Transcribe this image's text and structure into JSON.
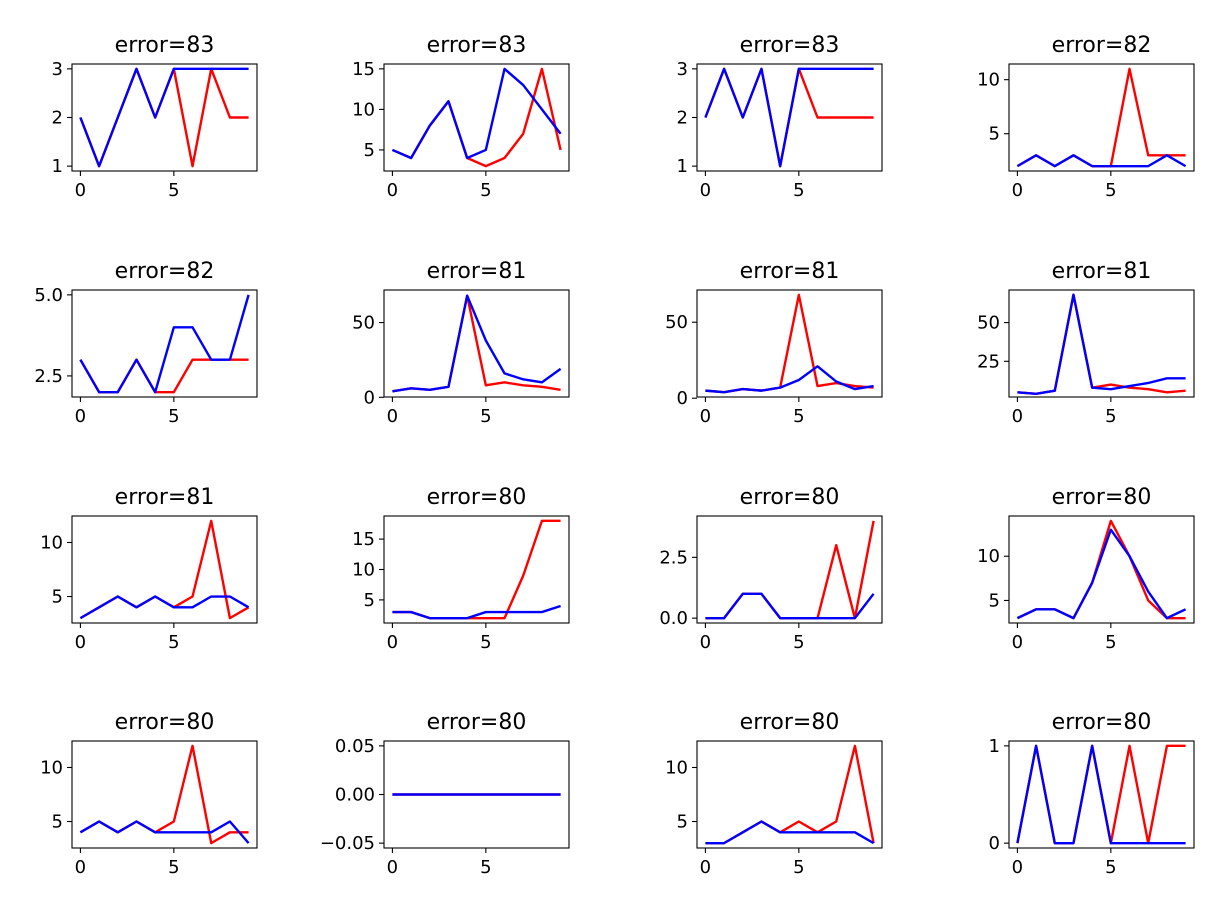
{
  "colors": {
    "red_series": "#ff0000",
    "blue_series": "#0000ff",
    "axes": "#000000",
    "background": "#ffffff"
  },
  "chart_data": [
    {
      "type": "line",
      "title": "error=83",
      "xlabel": "",
      "ylabel": "",
      "x": [
        0,
        1,
        2,
        3,
        4,
        5,
        6,
        7,
        8,
        9
      ],
      "xticks": [
        0,
        5
      ],
      "yticks": [
        1,
        2,
        3
      ],
      "ytick_labels": [
        "1",
        "2",
        "3"
      ],
      "ylim": [
        0.9,
        3.1
      ],
      "grid": false,
      "series": [
        {
          "color": "red",
          "values": [
            2,
            1,
            2,
            3,
            2,
            3,
            1,
            3,
            2,
            2
          ]
        },
        {
          "color": "blue",
          "values": [
            2,
            1,
            2,
            3,
            2,
            3,
            3,
            3,
            3,
            3
          ]
        }
      ]
    },
    {
      "type": "line",
      "title": "error=83",
      "xlabel": "",
      "ylabel": "",
      "x": [
        0,
        1,
        2,
        3,
        4,
        5,
        6,
        7,
        8,
        9
      ],
      "xticks": [
        0,
        5
      ],
      "yticks": [
        5,
        10,
        15
      ],
      "ytick_labels": [
        "5",
        "10",
        "15"
      ],
      "ylim": [
        2.4,
        15.6
      ],
      "grid": false,
      "series": [
        {
          "color": "red",
          "values": [
            5,
            4,
            8,
            11,
            4,
            3,
            4,
            7,
            15,
            5
          ]
        },
        {
          "color": "blue",
          "values": [
            5,
            4,
            8,
            11,
            4,
            5,
            15,
            13,
            10,
            7
          ]
        }
      ]
    },
    {
      "type": "line",
      "title": "error=83",
      "xlabel": "",
      "ylabel": "",
      "x": [
        0,
        1,
        2,
        3,
        4,
        5,
        6,
        7,
        8,
        9
      ],
      "xticks": [
        0,
        5
      ],
      "yticks": [
        1,
        2,
        3
      ],
      "ytick_labels": [
        "1",
        "2",
        "3"
      ],
      "ylim": [
        0.9,
        3.1
      ],
      "grid": false,
      "series": [
        {
          "color": "red",
          "values": [
            2,
            3,
            2,
            3,
            1,
            3,
            2,
            2,
            2,
            2
          ]
        },
        {
          "color": "blue",
          "values": [
            2,
            3,
            2,
            3,
            1,
            3,
            3,
            3,
            3,
            3
          ]
        }
      ]
    },
    {
      "type": "line",
      "title": "error=82",
      "xlabel": "",
      "ylabel": "",
      "x": [
        0,
        1,
        2,
        3,
        4,
        5,
        6,
        7,
        8,
        9
      ],
      "xticks": [
        0,
        5
      ],
      "yticks": [
        5,
        10
      ],
      "ytick_labels": [
        "5",
        "10"
      ],
      "ylim": [
        1.55,
        11.45
      ],
      "grid": false,
      "series": [
        {
          "color": "red",
          "values": [
            2,
            3,
            2,
            3,
            2,
            2,
            11,
            3,
            3,
            3
          ]
        },
        {
          "color": "blue",
          "values": [
            2,
            3,
            2,
            3,
            2,
            2,
            2,
            2,
            3,
            2
          ]
        }
      ]
    },
    {
      "type": "line",
      "title": "error=82",
      "xlabel": "",
      "ylabel": "",
      "x": [
        0,
        1,
        2,
        3,
        4,
        5,
        6,
        7,
        8,
        9
      ],
      "xticks": [
        0,
        5
      ],
      "yticks": [
        2.5,
        5.0
      ],
      "ytick_labels": [
        "2.5",
        "5.0"
      ],
      "ylim": [
        1.85,
        5.15
      ],
      "grid": false,
      "series": [
        {
          "color": "red",
          "values": [
            3,
            2,
            2,
            3,
            2,
            2,
            3,
            3,
            3,
            3
          ]
        },
        {
          "color": "blue",
          "values": [
            3,
            2,
            2,
            3,
            2,
            4,
            4,
            3,
            3,
            5
          ]
        }
      ]
    },
    {
      "type": "line",
      "title": "error=81",
      "xlabel": "",
      "ylabel": "",
      "x": [
        0,
        1,
        2,
        3,
        4,
        5,
        6,
        7,
        8,
        9
      ],
      "xticks": [
        0,
        5
      ],
      "yticks": [
        0,
        50
      ],
      "ytick_labels": [
        "0",
        "50"
      ],
      "ylim": [
        0.2,
        71.8
      ],
      "grid": false,
      "series": [
        {
          "color": "red",
          "values": [
            4,
            6,
            5,
            7,
            68,
            8,
            10,
            8,
            7,
            5
          ]
        },
        {
          "color": "blue",
          "values": [
            4,
            6,
            5,
            7,
            68,
            38,
            16,
            12,
            10,
            19
          ]
        }
      ]
    },
    {
      "type": "line",
      "title": "error=81",
      "xlabel": "",
      "ylabel": "",
      "x": [
        0,
        1,
        2,
        3,
        4,
        5,
        6,
        7,
        8,
        9
      ],
      "xticks": [
        0,
        5
      ],
      "yticks": [
        0,
        50
      ],
      "ytick_labels": [
        "0",
        "50"
      ],
      "ylim": [
        0.8,
        71.2
      ],
      "grid": false,
      "series": [
        {
          "color": "red",
          "values": [
            5,
            4,
            6,
            5,
            7,
            68,
            8,
            10,
            8,
            7
          ]
        },
        {
          "color": "blue",
          "values": [
            5,
            4,
            6,
            5,
            7,
            12,
            21,
            11,
            6,
            8
          ]
        }
      ]
    },
    {
      "type": "line",
      "title": "error=81",
      "xlabel": "",
      "ylabel": "",
      "x": [
        0,
        1,
        2,
        3,
        4,
        5,
        6,
        7,
        8,
        9
      ],
      "xticks": [
        0,
        5
      ],
      "yticks": [
        25,
        50
      ],
      "ytick_labels": [
        "25",
        "50"
      ],
      "ylim": [
        1.95,
        71.05
      ],
      "grid": false,
      "series": [
        {
          "color": "red",
          "values": [
            5,
            4,
            6,
            68,
            8,
            10,
            8,
            7,
            5,
            6
          ]
        },
        {
          "color": "blue",
          "values": [
            5,
            4,
            6,
            68,
            8,
            7,
            9,
            11,
            14,
            14
          ]
        }
      ]
    },
    {
      "type": "line",
      "title": "error=81",
      "xlabel": "",
      "ylabel": "",
      "x": [
        0,
        1,
        2,
        3,
        4,
        5,
        6,
        7,
        8,
        9
      ],
      "xticks": [
        0,
        5
      ],
      "yticks": [
        5,
        10
      ],
      "ytick_labels": [
        "5",
        "10"
      ],
      "ylim": [
        2.55,
        12.45
      ],
      "grid": false,
      "series": [
        {
          "color": "red",
          "values": [
            3,
            4,
            5,
            4,
            5,
            4,
            5,
            12,
            3,
            4
          ]
        },
        {
          "color": "blue",
          "values": [
            3,
            4,
            5,
            4,
            5,
            4,
            4,
            5,
            5,
            4
          ]
        }
      ]
    },
    {
      "type": "line",
      "title": "error=80",
      "xlabel": "",
      "ylabel": "",
      "x": [
        0,
        1,
        2,
        3,
        4,
        5,
        6,
        7,
        8,
        9
      ],
      "xticks": [
        0,
        5
      ],
      "yticks": [
        5,
        10,
        15
      ],
      "ytick_labels": [
        "5",
        "10",
        "15"
      ],
      "ylim": [
        1.2,
        18.8
      ],
      "grid": false,
      "series": [
        {
          "color": "red",
          "values": [
            3,
            3,
            2,
            2,
            2,
            2,
            2,
            9,
            18,
            18
          ]
        },
        {
          "color": "blue",
          "values": [
            3,
            3,
            2,
            2,
            2,
            3,
            3,
            3,
            3,
            4
          ]
        }
      ]
    },
    {
      "type": "line",
      "title": "error=80",
      "xlabel": "",
      "ylabel": "",
      "x": [
        0,
        1,
        2,
        3,
        4,
        5,
        6,
        7,
        8,
        9
      ],
      "xticks": [
        0,
        5
      ],
      "yticks": [
        0.0,
        2.5
      ],
      "ytick_labels": [
        "0.0",
        "2.5"
      ],
      "ylim": [
        -0.2,
        4.2
      ],
      "grid": false,
      "series": [
        {
          "color": "red",
          "values": [
            0,
            0,
            1,
            1,
            0,
            0,
            0,
            3,
            0,
            4
          ]
        },
        {
          "color": "blue",
          "values": [
            0,
            0,
            1,
            1,
            0,
            0,
            0,
            0,
            0,
            1
          ]
        }
      ]
    },
    {
      "type": "line",
      "title": "error=80",
      "xlabel": "",
      "ylabel": "",
      "x": [
        0,
        1,
        2,
        3,
        4,
        5,
        6,
        7,
        8,
        9
      ],
      "xticks": [
        0,
        5
      ],
      "yticks": [
        5,
        10
      ],
      "ytick_labels": [
        "5",
        "10"
      ],
      "ylim": [
        2.45,
        14.55
      ],
      "grid": false,
      "series": [
        {
          "color": "red",
          "values": [
            3,
            4,
            4,
            3,
            7,
            14,
            10,
            5,
            3,
            3
          ]
        },
        {
          "color": "blue",
          "values": [
            3,
            4,
            4,
            3,
            7,
            13,
            10,
            6,
            3,
            4
          ]
        }
      ]
    },
    {
      "type": "line",
      "title": "error=80",
      "xlabel": "",
      "ylabel": "",
      "x": [
        0,
        1,
        2,
        3,
        4,
        5,
        6,
        7,
        8,
        9
      ],
      "xticks": [
        0,
        5
      ],
      "yticks": [
        5,
        10
      ],
      "ytick_labels": [
        "5",
        "10"
      ],
      "ylim": [
        2.55,
        12.45
      ],
      "grid": false,
      "series": [
        {
          "color": "red",
          "values": [
            4,
            5,
            4,
            5,
            4,
            5,
            12,
            3,
            4,
            4
          ]
        },
        {
          "color": "blue",
          "values": [
            4,
            5,
            4,
            5,
            4,
            4,
            4,
            4,
            5,
            3
          ]
        }
      ]
    },
    {
      "type": "line",
      "title": "error=80",
      "xlabel": "",
      "ylabel": "",
      "x": [
        0,
        1,
        2,
        3,
        4,
        5,
        6,
        7,
        8,
        9
      ],
      "xticks": [
        0,
        5
      ],
      "yticks": [
        -0.05,
        0.0,
        0.05
      ],
      "ytick_labels": [
        "−0.05",
        "0.00",
        "0.05"
      ],
      "ylim": [
        -0.055,
        0.055
      ],
      "grid": false,
      "series": [
        {
          "color": "red",
          "values": [
            0,
            0,
            0,
            0,
            0,
            0,
            0,
            0,
            0,
            0
          ]
        },
        {
          "color": "blue",
          "values": [
            0,
            0,
            0,
            0,
            0,
            0,
            0,
            0,
            0,
            0
          ]
        }
      ]
    },
    {
      "type": "line",
      "title": "error=80",
      "xlabel": "",
      "ylabel": "",
      "x": [
        0,
        1,
        2,
        3,
        4,
        5,
        6,
        7,
        8,
        9
      ],
      "xticks": [
        0,
        5
      ],
      "yticks": [
        5,
        10
      ],
      "ytick_labels": [
        "5",
        "10"
      ],
      "ylim": [
        2.55,
        12.45
      ],
      "grid": false,
      "series": [
        {
          "color": "red",
          "values": [
            3,
            3,
            4,
            5,
            4,
            5,
            4,
            5,
            12,
            3
          ]
        },
        {
          "color": "blue",
          "values": [
            3,
            3,
            4,
            5,
            4,
            4,
            4,
            4,
            4,
            3
          ]
        }
      ]
    },
    {
      "type": "line",
      "title": "error=80",
      "xlabel": "",
      "ylabel": "",
      "x": [
        0,
        1,
        2,
        3,
        4,
        5,
        6,
        7,
        8,
        9
      ],
      "xticks": [
        0,
        5
      ],
      "yticks": [
        0,
        1
      ],
      "ytick_labels": [
        "0",
        "1"
      ],
      "ylim": [
        -0.05,
        1.05
      ],
      "grid": false,
      "series": [
        {
          "color": "red",
          "values": [
            0,
            1,
            0,
            0,
            1,
            0,
            1,
            0,
            1,
            1
          ]
        },
        {
          "color": "blue",
          "values": [
            0,
            1,
            0,
            0,
            1,
            0,
            0,
            0,
            0,
            0
          ]
        }
      ]
    }
  ]
}
